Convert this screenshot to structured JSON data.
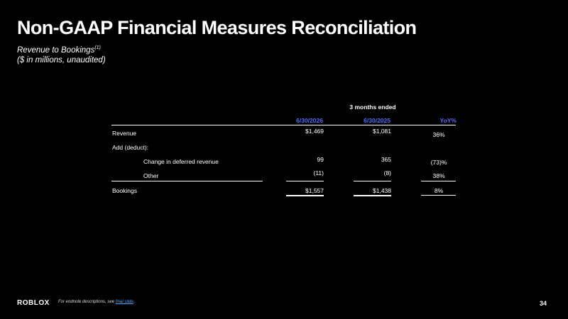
{
  "slide": {
    "title": "Non-GAAP Financial Measures Reconciliation",
    "subtitle_line1": "Revenue to Bookings",
    "subtitle_sup": "(1)",
    "subtitle_line2": "($ in millions, unaudited)"
  },
  "table": {
    "period_header": "3 months ended",
    "columns": [
      "6/30/2026",
      "6/30/2025",
      "YoY%"
    ],
    "rows": [
      {
        "label": "Revenue",
        "v1": "$1,469",
        "v2": "$1,081",
        "yoy": "36%"
      },
      {
        "label": "Add (deduct):",
        "v1": "",
        "v2": "",
        "yoy": ""
      },
      {
        "label": "Change in deferred revenue",
        "v1": "99",
        "v2": "365",
        "yoy": "(73)%"
      },
      {
        "label": "Other",
        "v1": "(11)",
        "v2": "(8)",
        "yoy": "38%"
      },
      {
        "label": "Bookings",
        "v1": "$1,557",
        "v2": "$1,438",
        "yoy": "8%"
      }
    ]
  },
  "footer": {
    "logo": "ROBLOX",
    "footnote_text": "For endnote descriptions, see ",
    "footnote_link": "final slide",
    "footnote_end": ".",
    "page_number": "34"
  },
  "colors": {
    "background": "#000000",
    "text": "#ffffff",
    "column_header": "#5b6bff",
    "link": "#4ea7ff"
  }
}
